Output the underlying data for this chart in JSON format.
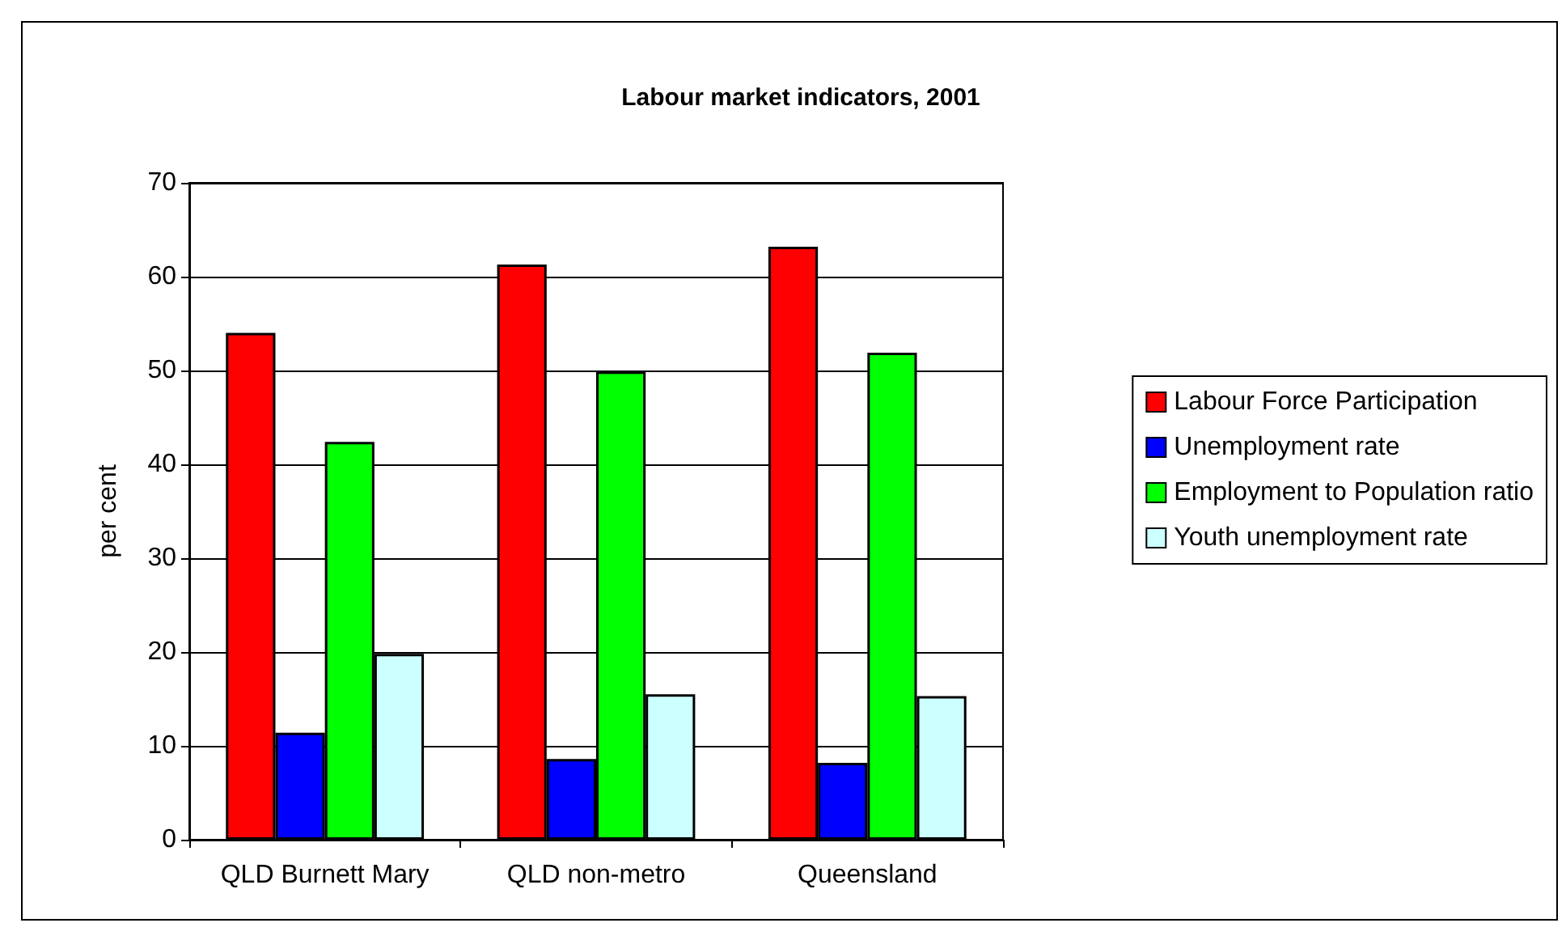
{
  "chart_data": {
    "type": "bar",
    "title": "Labour market indicators, 2001",
    "ylabel": "per cent",
    "categories": [
      "QLD Burnett Mary",
      "QLD non-metro",
      "Queensland"
    ],
    "series": [
      {
        "name": "Labour Force Participation",
        "color": "#ff0000",
        "values": [
          54.0,
          61.3,
          63.2
        ]
      },
      {
        "name": "Unemployment rate",
        "color": "#0000ff",
        "values": [
          11.4,
          8.6,
          8.2
        ]
      },
      {
        "name": "Employment to Population ratio",
        "color": "#00ff00",
        "values": [
          42.4,
          49.9,
          51.9
        ]
      },
      {
        "name": "Youth unemployment rate",
        "color": "#ccffff",
        "values": [
          19.8,
          15.5,
          15.3
        ]
      }
    ],
    "ylim": [
      0,
      70
    ],
    "yticks": [
      0,
      10,
      20,
      30,
      40,
      50,
      60,
      70
    ],
    "grid": "y",
    "legend": "right"
  }
}
